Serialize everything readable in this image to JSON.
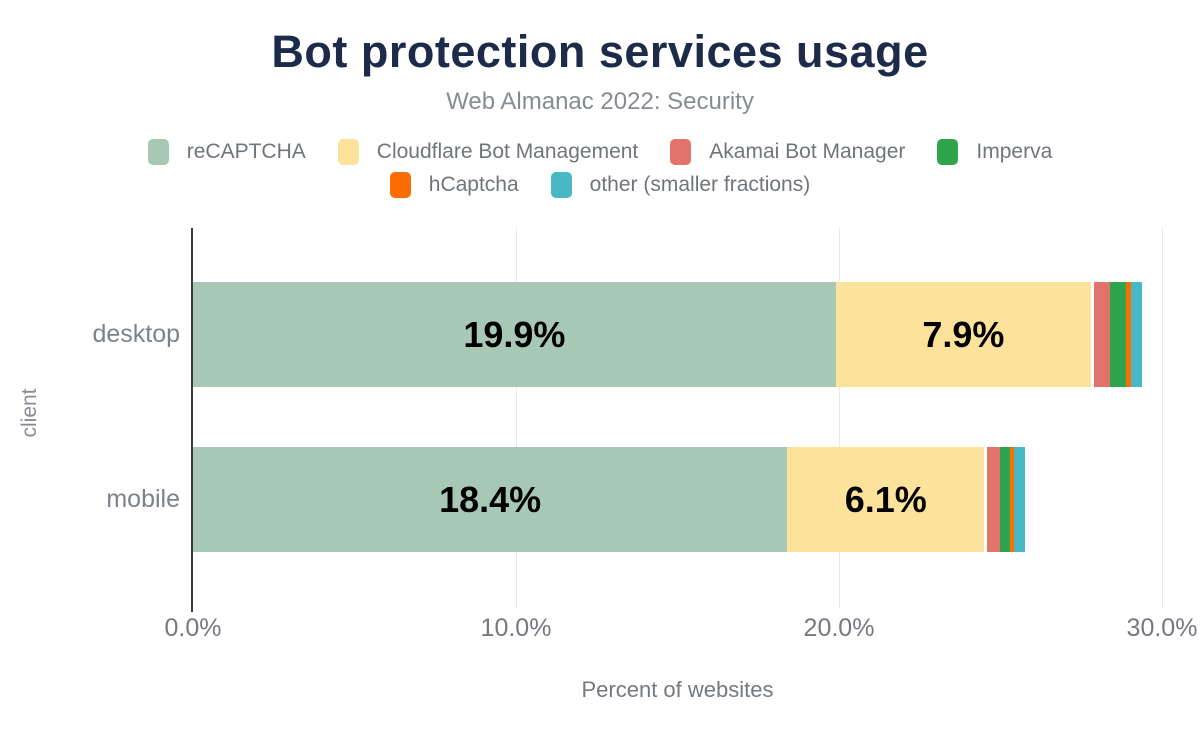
{
  "chart_data": {
    "type": "bar",
    "orientation": "horizontal",
    "stacked": true,
    "title": "Bot protection services usage",
    "subtitle": "Web Almanac 2022: Security",
    "xlabel": "Percent of websites",
    "ylabel": "client",
    "categories": [
      "desktop",
      "mobile"
    ],
    "series": [
      {
        "name": "reCAPTCHA",
        "color": "#a6c8b5",
        "values": [
          19.9,
          18.4
        ],
        "data_labels": [
          "19.9%",
          "18.4%"
        ]
      },
      {
        "name": "Cloudflare Bot Management",
        "color": "#fde29b",
        "values": [
          7.9,
          6.1
        ],
        "data_labels": [
          "7.9%",
          "6.1%"
        ]
      },
      {
        "name": "Akamai Bot Manager",
        "color": "#e2736c",
        "values": [
          0.6,
          0.5
        ],
        "data_labels": null
      },
      {
        "name": "Imperva",
        "color": "#2fa44d",
        "values": [
          0.5,
          0.3
        ],
        "data_labels": null
      },
      {
        "name": "hCaptcha",
        "color": "#fb6d02",
        "values": [
          0.13,
          0.13
        ],
        "data_labels": null
      },
      {
        "name": "other (smaller fractions)",
        "color": "#47b8c4",
        "values": [
          0.35,
          0.34
        ],
        "data_labels": null
      }
    ],
    "xlim": [
      0,
      30
    ],
    "xticks": [
      {
        "value": 0,
        "label": "0.0%"
      },
      {
        "value": 10,
        "label": "10.0%"
      },
      {
        "value": 20,
        "label": "20.0%"
      },
      {
        "value": 30,
        "label": "30.0%"
      }
    ],
    "grid": true,
    "legend_position": "top",
    "legend_rows": [
      [
        0,
        1,
        2,
        3
      ],
      [
        4,
        5
      ]
    ]
  },
  "colors": {
    "title": "#1c2b4a",
    "subtitle": "#878c94",
    "legend_text": "#70757c",
    "axis_text": "#75797f",
    "category_text": "#7d828a",
    "data_label": "#000000",
    "gridline": "#e9e9e9",
    "axis_line": "#3b3b3b",
    "background": "#ffffff"
  }
}
